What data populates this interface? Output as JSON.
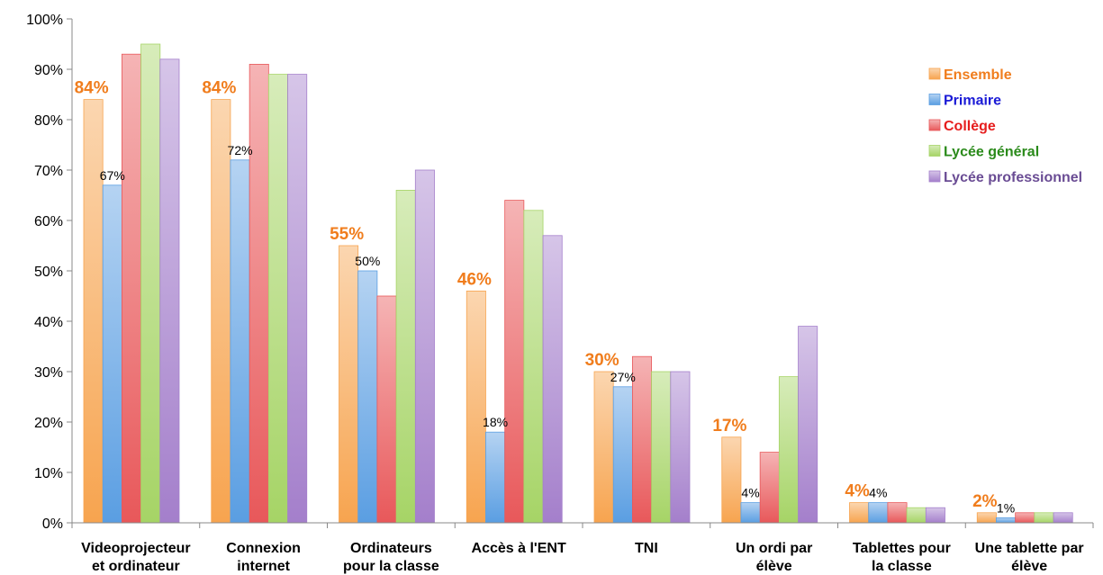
{
  "chart_data": {
    "type": "bar",
    "categories": [
      [
        "Videoprojecteur",
        "et ordinateur"
      ],
      [
        "Connexion",
        "internet"
      ],
      [
        "Ordinateurs",
        "pour la classe"
      ],
      [
        "Accès à l'ENT"
      ],
      [
        "TNI"
      ],
      [
        "Un ordi par",
        "élève"
      ],
      [
        "Tablettes pour",
        "la classe"
      ],
      [
        "Une tablette par",
        "élève"
      ]
    ],
    "series": [
      {
        "name": "Ensemble",
        "color": "#f7a44f",
        "label_color": "#f07d1d",
        "legend_color": "#f07d1d",
        "values": [
          84,
          84,
          55,
          46,
          30,
          17,
          4,
          2
        ],
        "data_labels": [
          "84%",
          "84%",
          "55%",
          "46%",
          "30%",
          "17%",
          "4%",
          "2%"
        ]
      },
      {
        "name": "Primaire",
        "color": "#5a9ee2",
        "legend_color": "#1a1ad6",
        "values": [
          67,
          72,
          50,
          18,
          27,
          4,
          4,
          1
        ],
        "data_labels": [
          "67%",
          "72%",
          "50%",
          "18%",
          "27%",
          "4%",
          "4%",
          "1%"
        ]
      },
      {
        "name": "Collège",
        "color": "#e8585a",
        "legend_color": "#e61d1d",
        "values": [
          93,
          91,
          45,
          64,
          33,
          14,
          4,
          2
        ]
      },
      {
        "name": "Lycée général",
        "color": "#a6d466",
        "legend_color": "#2a8a1a",
        "values": [
          95,
          89,
          66,
          62,
          30,
          29,
          3,
          2
        ]
      },
      {
        "name": "Lycée professionnel",
        "color": "#a47fcb",
        "legend_color": "#6a4c94",
        "values": [
          92,
          89,
          70,
          57,
          30,
          39,
          3,
          2
        ]
      }
    ],
    "y_ticks": [
      "0%",
      "10%",
      "20%",
      "30%",
      "40%",
      "50%",
      "60%",
      "70%",
      "80%",
      "90%",
      "100%"
    ],
    "ylim": [
      0,
      100
    ],
    "grid": false,
    "legend_position": "right"
  }
}
